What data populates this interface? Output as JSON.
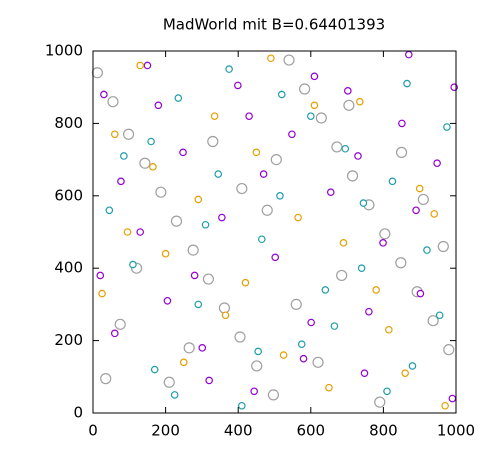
{
  "chart_data": {
    "type": "scatter",
    "title": "MadWorld mit B=0.64401393",
    "xlim": [
      0,
      1000
    ],
    "ylim": [
      0,
      1000
    ],
    "xticks": [
      0,
      200,
      400,
      600,
      800,
      1000
    ],
    "yticks": [
      0,
      200,
      400,
      600,
      800,
      1000
    ],
    "series": [
      {
        "color": "#a0a0a0",
        "x": [
          12,
          55,
          98,
          143,
          187,
          230,
          276,
          318,
          362,
          405,
          451,
          497,
          540,
          583,
          629,
          672,
          715,
          760,
          804,
          848,
          893,
          937,
          980,
          35,
          120,
          265,
          410,
          560,
          705,
          850,
          965,
          75,
          330,
          480,
          620,
          790,
          910,
          210,
          505,
          685
        ],
        "values": [
          940,
          860,
          770,
          690,
          610,
          530,
          450,
          370,
          290,
          210,
          130,
          50,
          975,
          895,
          815,
          735,
          655,
          575,
          495,
          415,
          335,
          255,
          175,
          95,
          400,
          180,
          620,
          300,
          850,
          720,
          460,
          245,
          750,
          560,
          140,
          30,
          590,
          85,
          700,
          380
        ]
      },
      {
        "color": "#9400d3",
        "x": [
          30,
          77,
          150,
          205,
          248,
          301,
          355,
          399,
          444,
          502,
          548,
          601,
          655,
          702,
          748,
          799,
          851,
          902,
          948,
          990,
          60,
          180,
          320,
          470,
          610,
          760,
          890,
          130,
          280,
          430,
          580,
          730,
          870,
          20,
          995
        ],
        "values": [
          880,
          640,
          960,
          310,
          720,
          180,
          540,
          905,
          60,
          430,
          770,
          250,
          610,
          890,
          110,
          470,
          800,
          330,
          690,
          40,
          220,
          850,
          90,
          660,
          930,
          280,
          560,
          500,
          380,
          820,
          150,
          710,
          990,
          380,
          900
        ]
      },
      {
        "color": "#1e9ea8",
        "x": [
          45,
          110,
          170,
          235,
          290,
          345,
          410,
          465,
          520,
          575,
          640,
          695,
          745,
          810,
          865,
          920,
          975,
          85,
          225,
          375,
          515,
          665,
          825,
          955,
          160,
          310,
          455,
          600,
          740,
          880
        ],
        "values": [
          560,
          410,
          120,
          870,
          300,
          660,
          20,
          480,
          880,
          190,
          340,
          730,
          580,
          60,
          910,
          450,
          790,
          710,
          50,
          950,
          600,
          240,
          640,
          270,
          750,
          520,
          170,
          820,
          400,
          130
        ]
      },
      {
        "color": "#e69f00",
        "x": [
          25,
          95,
          165,
          250,
          335,
          420,
          490,
          565,
          650,
          735,
          815,
          900,
          970,
          60,
          200,
          365,
          525,
          690,
          860,
          130,
          290,
          450,
          610,
          780,
          940
        ],
        "values": [
          330,
          500,
          680,
          140,
          820,
          360,
          980,
          540,
          70,
          860,
          230,
          620,
          20,
          770,
          440,
          270,
          160,
          470,
          110,
          960,
          590,
          720,
          850,
          340,
          550
        ]
      }
    ]
  }
}
